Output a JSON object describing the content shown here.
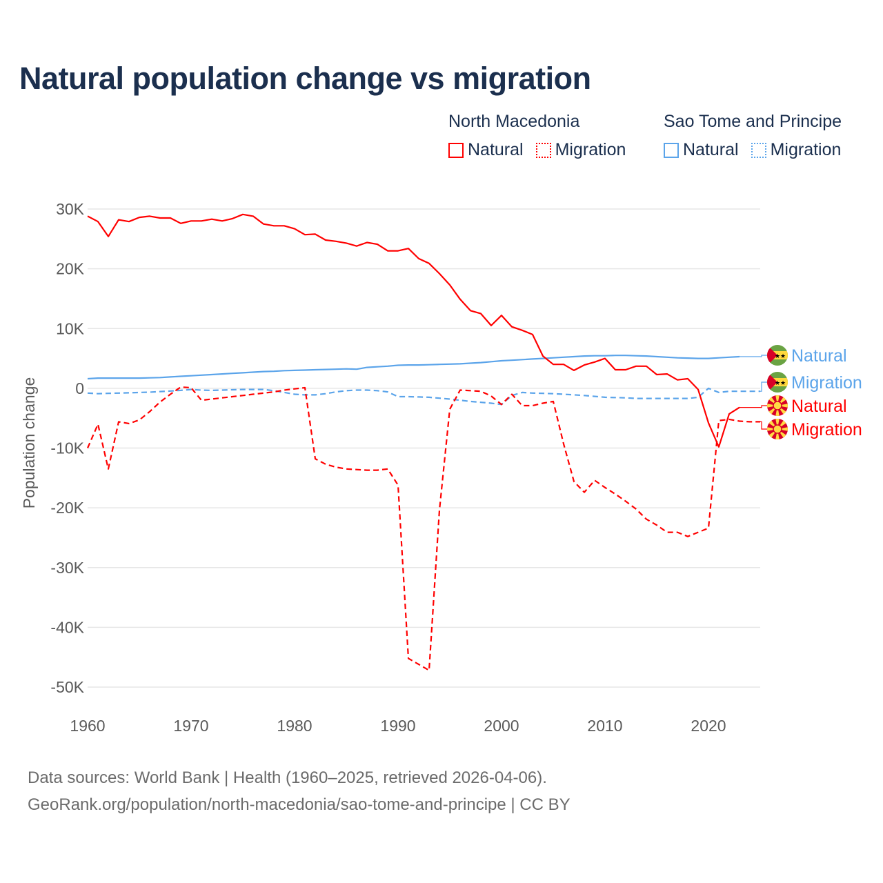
{
  "title": "Natural population change vs migration",
  "legend": {
    "groups": [
      {
        "name": "North Macedonia",
        "color": "#ff0000",
        "items": [
          "Natural",
          "Migration"
        ]
      },
      {
        "name": "Sao Tome and Principe",
        "color": "#5ba4ea",
        "items": [
          "Natural",
          "Migration"
        ]
      }
    ]
  },
  "footer": {
    "line1": "Data sources: World Bank | Health (1960–2025, retrieved 2026-04-06).",
    "line2": "GeoRank.org/population/north-macedonia/sao-tome-and-principe | CC BY"
  },
  "chart_data": {
    "type": "line",
    "title": "Natural population change vs migration",
    "xlabel": "",
    "ylabel": "Population change",
    "xlim": [
      1960,
      2025
    ],
    "ylim": [
      -50000,
      30000
    ],
    "xticks": [
      1960,
      1970,
      1980,
      1990,
      2000,
      2010,
      2020
    ],
    "xtick_labels": [
      "1960",
      "1970",
      "1980",
      "1990",
      "2000",
      "2010",
      "2020"
    ],
    "yticks": [
      30000,
      20000,
      10000,
      0,
      -10000,
      -20000,
      -30000,
      -40000,
      -50000
    ],
    "ytick_labels": [
      "30K",
      "20K",
      "10K",
      "0",
      "-10K",
      "-20K",
      "-30K",
      "-40K",
      "-50K"
    ],
    "grid": true,
    "legend_position": "top-right",
    "series": [
      {
        "name": "Natural",
        "country": "Sao Tome and Principe",
        "color": "#5ba4ea",
        "dash": false,
        "end_label": "Natural",
        "flag": "stp",
        "start": 1960,
        "values": [
          1600,
          1700,
          1700,
          1700,
          1700,
          1700,
          1750,
          1800,
          1900,
          2000,
          2100,
          2200,
          2300,
          2400,
          2500,
          2600,
          2700,
          2800,
          2850,
          2950,
          3000,
          3050,
          3100,
          3150,
          3200,
          3250,
          3200,
          3500,
          3600,
          3700,
          3850,
          3900,
          3900,
          3950,
          4000,
          4050,
          4100,
          4200,
          4300,
          4450,
          4600,
          4700,
          4800,
          4900,
          5000,
          5100,
          5200,
          5300,
          5400,
          5450,
          5450,
          5500,
          5500,
          5450,
          5400,
          5300,
          5200,
          5100,
          5050,
          5000,
          5000,
          5100,
          5200,
          5300
        ]
      },
      {
        "name": "Migration",
        "country": "Sao Tome and Principe",
        "color": "#5ba4ea",
        "dash": true,
        "end_label": "Migration",
        "flag": "stp",
        "start": 1960,
        "values": [
          -800,
          -900,
          -850,
          -800,
          -750,
          -700,
          -650,
          -550,
          -450,
          -350,
          -200,
          -300,
          -350,
          -300,
          -250,
          -200,
          -200,
          -200,
          -400,
          -700,
          -1000,
          -1100,
          -1100,
          -900,
          -600,
          -400,
          -300,
          -300,
          -400,
          -600,
          -1400,
          -1400,
          -1450,
          -1500,
          -1650,
          -1800,
          -2000,
          -2200,
          -2350,
          -2500,
          -2700,
          -1200,
          -700,
          -800,
          -850,
          -900,
          -1000,
          -1100,
          -1200,
          -1350,
          -1500,
          -1550,
          -1600,
          -1700,
          -1700,
          -1700,
          -1700,
          -1700,
          -1700,
          -1500,
          0,
          -700,
          -500,
          -500,
          -500,
          -500
        ]
      },
      {
        "name": "Natural",
        "country": "North Macedonia",
        "color": "#ff0000",
        "dash": false,
        "end_label": "Natural",
        "flag": "mkd",
        "start": 1960,
        "values": [
          28800,
          27900,
          25400,
          28200,
          27900,
          28600,
          28800,
          28500,
          28500,
          27600,
          28000,
          28000,
          28300,
          28000,
          28400,
          29100,
          28800,
          27500,
          27200,
          27200,
          26700,
          25700,
          25800,
          24800,
          24600,
          24300,
          23800,
          24400,
          24100,
          23000,
          23000,
          23400,
          21700,
          20900,
          19200,
          17300,
          14900,
          13000,
          12500,
          10500,
          12200,
          10300,
          9700,
          9000,
          5400,
          4000,
          4000,
          3000,
          3900,
          4400,
          5000,
          3100,
          3100,
          3700,
          3700,
          2300,
          2400,
          1400,
          1600,
          -200,
          -5800,
          -9800,
          -4300,
          -3200
        ]
      },
      {
        "name": "Migration",
        "country": "North Macedonia",
        "color": "#ff0000",
        "dash": true,
        "end_label": "Migration",
        "flag": "mkd",
        "start": 1960,
        "values": [
          -10000,
          -6000,
          -13500,
          -5600,
          -5900,
          -5300,
          -3900,
          -2300,
          -1000,
          200,
          100,
          -2000,
          -1800,
          -1600,
          -1400,
          -1200,
          -1000,
          -800,
          -600,
          -300,
          -100,
          100,
          -11800,
          -12700,
          -13200,
          -13500,
          -13600,
          -13700,
          -13700,
          -13500,
          -16200,
          -45200,
          -46200,
          -47200,
          -20400,
          -3500,
          -300,
          -400,
          -500,
          -1300,
          -2700,
          -1000,
          -2900,
          -2900,
          -2500,
          -2200,
          -9300,
          -15600,
          -17400,
          -15400,
          -16600,
          -17700,
          -18900,
          -20200,
          -21900,
          -22900,
          -24100,
          -24100,
          -24800,
          -24100,
          -23400,
          -5400,
          -5200,
          -5500,
          -5600,
          -5600
        ]
      }
    ]
  }
}
